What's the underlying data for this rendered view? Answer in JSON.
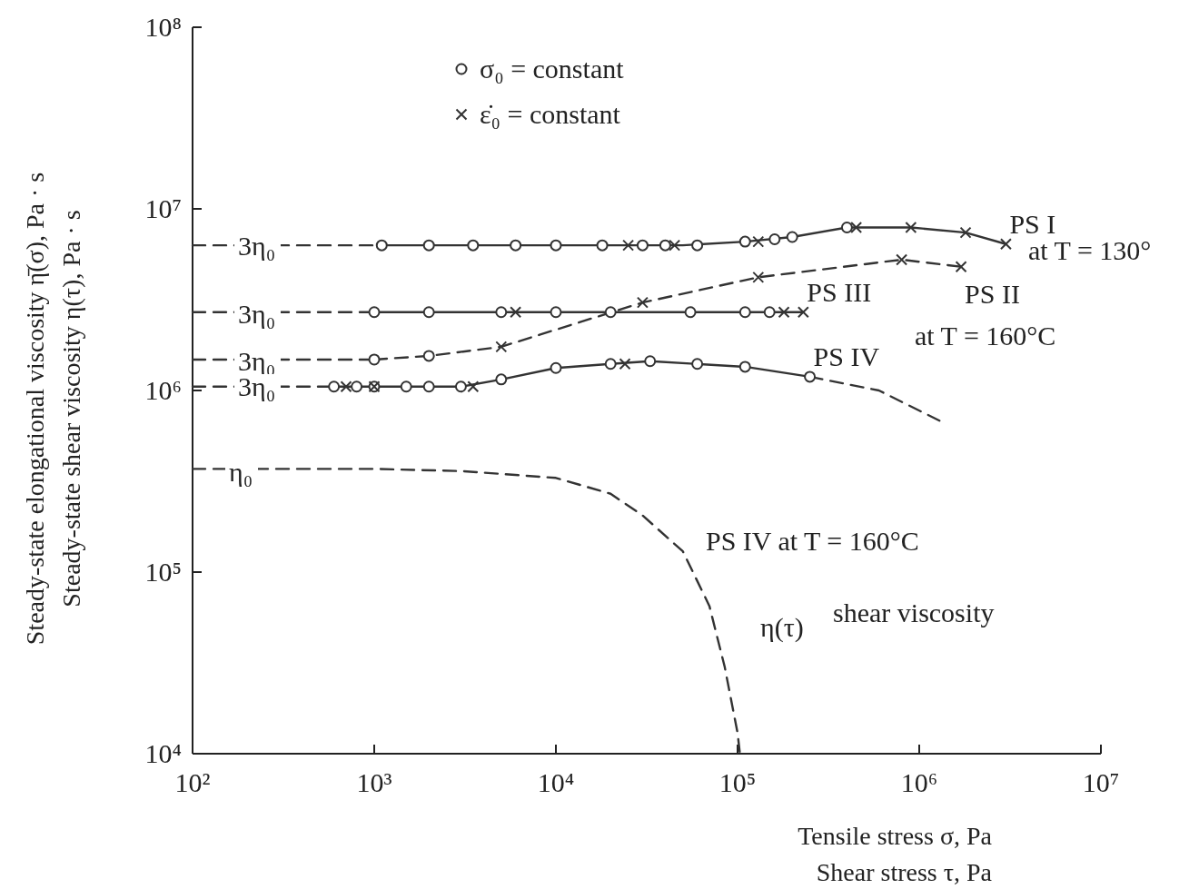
{
  "chart_data": {
    "type": "line",
    "xlabel": "Tensile stress σ, Pa\nShear stress τ, Pa",
    "ylabel": "Steady-state elongational viscosity η̄(σ), Pa · s\nSteady-state shear viscosity η(τ), Pa · s",
    "log": "xy",
    "grid": false,
    "legend": "top",
    "xlim": [
      100,
      10000000
    ],
    "ylim": [
      10000,
      100000000
    ],
    "xticks": [
      {
        "value": 100,
        "label": "10²"
      },
      {
        "value": 1000,
        "label": "10³"
      },
      {
        "value": 10000,
        "label": "10⁴"
      },
      {
        "value": 100000,
        "label": "10⁵"
      },
      {
        "value": 1000000,
        "label": "10⁶"
      },
      {
        "value": 10000000,
        "label": "10⁷"
      }
    ],
    "yticks": [
      {
        "value": 10000,
        "label": "10⁴"
      },
      {
        "value": 100000,
        "label": "10⁵"
      },
      {
        "value": 1000000,
        "label": "10⁶"
      },
      {
        "value": 10000000,
        "label": "10⁷"
      },
      {
        "value": 100000000,
        "label": "10⁸"
      }
    ],
    "series": [
      {
        "name": "PS I",
        "type": "line",
        "color": "#333333",
        "line_style": "solid",
        "marker": "none",
        "x": [
          1100,
          10000,
          50000,
          110000,
          200000,
          400000,
          900000,
          1800000,
          3000000
        ],
        "values": [
          6300000,
          6300000,
          6300000,
          6600000,
          7000000,
          7900000,
          7900000,
          7400000,
          6400000
        ]
      },
      {
        "type": "line",
        "color": "#333333",
        "line_style": "dashed",
        "marker": "none",
        "x": [
          100,
          1100
        ],
        "values": [
          6300000,
          6300000
        ]
      },
      {
        "name": "PS II",
        "type": "line",
        "color": "#333333",
        "line_style": "dashed",
        "marker": "none",
        "x": [
          1000,
          2000,
          5000,
          30000,
          130000,
          800000,
          1700000
        ],
        "values": [
          1480000,
          1550000,
          1740000,
          3050000,
          4200000,
          5250000,
          4800000
        ]
      },
      {
        "type": "line",
        "color": "#333333",
        "line_style": "dashed",
        "marker": "none",
        "x": [
          100,
          1000
        ],
        "values": [
          1480000,
          1480000
        ]
      },
      {
        "name": "PS III",
        "type": "line",
        "color": "#333333",
        "line_style": "solid",
        "marker": "none",
        "x": [
          1000,
          230000
        ],
        "values": [
          2700000,
          2700000
        ]
      },
      {
        "type": "line",
        "color": "#333333",
        "line_style": "dashed",
        "marker": "none",
        "x": [
          100,
          1000
        ],
        "values": [
          2700000,
          2700000
        ]
      },
      {
        "name": "PS IV",
        "type": "line",
        "color": "#333333",
        "line_style": "solid",
        "marker": "none",
        "x": [
          600,
          3000,
          5000,
          10000,
          20000,
          33000,
          110000,
          250000
        ],
        "values": [
          1050000,
          1050000,
          1150000,
          1330000,
          1400000,
          1450000,
          1350000,
          1190000
        ]
      },
      {
        "type": "line",
        "color": "#333333",
        "line_style": "dashed",
        "marker": "none",
        "x": [
          250000,
          600000,
          1300000
        ],
        "values": [
          1190000,
          1000000,
          680000
        ]
      },
      {
        "type": "line",
        "color": "#333333",
        "line_style": "dashed",
        "marker": "none",
        "x": [
          100,
          600
        ],
        "values": [
          1050000,
          1050000
        ]
      },
      {
        "type": "line",
        "color": "#333333",
        "line_style": "dashed",
        "marker": "none",
        "x": [
          100,
          1000,
          3000,
          10000,
          20000,
          30000,
          50000,
          70000,
          85000,
          100000,
          103000
        ],
        "values": [
          370000,
          370000,
          360000,
          330000,
          270000,
          205000,
          130000,
          65000,
          30000,
          13000,
          10000
        ]
      },
      {
        "name": "σ₀ = constant",
        "type": "scatter",
        "color": "#333333",
        "marker": "circle",
        "x": [
          1100,
          2000,
          3500,
          6000,
          10000,
          18000,
          30000,
          40000,
          60000,
          110000,
          160000,
          200000,
          400000,
          1000,
          2000,
          1000,
          2000,
          5000,
          10000,
          20000,
          55000,
          110000,
          150000,
          600,
          800,
          1000,
          1500,
          2000,
          3000,
          5000,
          10000,
          20000,
          33000,
          60000,
          110000,
          250000
        ],
        "values": [
          6300000,
          6300000,
          6300000,
          6300000,
          6300000,
          6300000,
          6300000,
          6300000,
          6300000,
          6600000,
          6800000,
          7000000,
          7900000,
          1480000,
          1550000,
          2700000,
          2700000,
          2700000,
          2700000,
          2700000,
          2700000,
          2700000,
          2700000,
          1050000,
          1050000,
          1050000,
          1050000,
          1050000,
          1050000,
          1150000,
          1330000,
          1400000,
          1450000,
          1400000,
          1350000,
          1190000
        ]
      },
      {
        "name": "ε̇₀ = constant",
        "type": "scatter",
        "color": "#333333",
        "marker": "cross",
        "x": [
          25000,
          45000,
          130000,
          450000,
          900000,
          1800000,
          3000000,
          5000,
          30000,
          130000,
          800000,
          1700000,
          6000,
          180000,
          230000,
          700,
          1000,
          3500,
          24000
        ],
        "values": [
          6300000,
          6300000,
          6600000,
          7900000,
          7900000,
          7400000,
          6400000,
          1740000,
          3050000,
          4200000,
          5250000,
          4800000,
          2700000,
          2700000,
          2700000,
          1050000,
          1050000,
          1050000,
          1400000
        ]
      }
    ],
    "annotations": [
      "3η₀",
      "3η₀",
      "3η₀",
      "3η₀",
      "η₀",
      "at T = 130°",
      "at T = 160°C",
      "PS IV at T = 160°C",
      "η(τ)",
      "shear viscosity"
    ]
  }
}
